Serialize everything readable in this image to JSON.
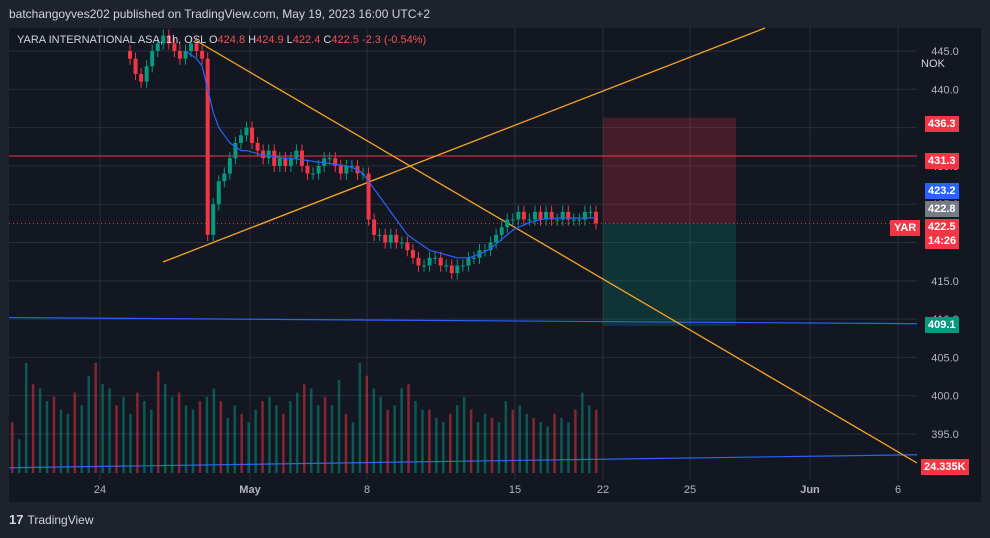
{
  "header": {
    "publisher": "batchangoyves202 published on TradingView.com, May 19, 2023 16:00 UTC+2"
  },
  "legend": {
    "symbol": "YARA INTERNATIONAL ASA, 1h, OSL",
    "open_label": "O",
    "open": "424.8",
    "high_label": "H",
    "high": "424.9",
    "low_label": "L",
    "low": "422.4",
    "close_label": "C",
    "close": "422.5",
    "change": "-2.3 (-0.54%)"
  },
  "currency": "NOK",
  "symbol_tag": "YAR",
  "footer": {
    "brand": "TradingView",
    "logo_text": "17"
  },
  "price_tags": [
    {
      "label": "436.3",
      "color": "#f23645"
    },
    {
      "label": "431.3",
      "color": "#f23645"
    },
    {
      "label": "423.2",
      "color": "#2962ff"
    },
    {
      "label": "422.8",
      "color": "#787b86"
    },
    {
      "label": "422.5",
      "color": "#f23645"
    },
    {
      "label": "14:26",
      "color": "#f23645"
    },
    {
      "label": "409.1",
      "color": "#089981"
    },
    {
      "label": "24.335K",
      "color": "#f23645"
    }
  ],
  "chart_data": {
    "type": "candlestick",
    "ylim": [
      389,
      448
    ],
    "y_ticks": [
      395.0,
      400.0,
      405.0,
      410.0,
      415.0,
      420.0,
      425.0,
      430.0,
      435.0,
      440.0,
      445.0
    ],
    "x_ticks": [
      "24",
      "May",
      "8",
      "15",
      "22",
      "25",
      "Jun",
      "6"
    ],
    "colors": {
      "up": "#089981",
      "down": "#f23645",
      "ma": "#2962ff",
      "trend": "#f5a623",
      "grid": "#2a2e39"
    },
    "series": [
      {
        "name": "price",
        "values": [
          444,
          442,
          441,
          443,
          445,
          446,
          447,
          446,
          445,
          444,
          445,
          446,
          445,
          444,
          421,
          425,
          428,
          429,
          431,
          433,
          434,
          435,
          433,
          432,
          431,
          432,
          430,
          431,
          430,
          431,
          432,
          430,
          429,
          429,
          430,
          431,
          431,
          430,
          429,
          430,
          430,
          429,
          429,
          423,
          421,
          421,
          420,
          421,
          420,
          420,
          419,
          418,
          417,
          417,
          418,
          418,
          417,
          417,
          416,
          417,
          417,
          418,
          418,
          419,
          419,
          420,
          421,
          422,
          423,
          423,
          424,
          423,
          423,
          424,
          423,
          424,
          423,
          423,
          424,
          423,
          423,
          423,
          424,
          424,
          422.5
        ]
      },
      {
        "name": "moving average",
        "values": [
          null,
          null,
          null,
          null,
          null,
          null,
          null,
          null,
          null,
          null,
          445,
          444.5,
          444,
          443,
          440,
          437,
          435,
          434,
          433,
          432.5,
          432,
          432,
          431.8,
          431.6,
          431.4,
          431.3,
          431.2,
          431.1,
          431,
          431,
          430.9,
          430.8,
          430.7,
          430.6,
          430.5,
          430.4,
          430.3,
          430.2,
          430.1,
          430,
          429.8,
          429.5,
          429,
          428,
          427,
          426,
          425,
          424,
          423,
          422,
          421,
          420.5,
          420,
          419.5,
          419,
          418.8,
          418.6,
          418.4,
          418.2,
          418,
          418,
          418,
          418.2,
          418.5,
          418.8,
          419.2,
          419.8,
          420.4,
          421,
          421.6,
          422,
          422.3,
          422.6,
          422.8,
          423,
          423.1,
          423.1,
          423.2,
          423.2,
          423.2,
          423.2,
          423.2,
          423.2,
          423.2,
          423.2
        ]
      }
    ],
    "volume": [
      120,
      80,
      260,
      210,
      200,
      170,
      180,
      150,
      140,
      190,
      160,
      230,
      260,
      210,
      200,
      160,
      180,
      140,
      190,
      170,
      150,
      240,
      210,
      180,
      190,
      160,
      150,
      170,
      180,
      200,
      170,
      130,
      160,
      140,
      120,
      150,
      170,
      180,
      160,
      140,
      170,
      190,
      210,
      200,
      160,
      180,
      160,
      220,
      140,
      120,
      260,
      230,
      200,
      180,
      150,
      160,
      200,
      210,
      170,
      150,
      150,
      130,
      120,
      140,
      160,
      180,
      150,
      120,
      140,
      130,
      120,
      170,
      150,
      160,
      140,
      130,
      120,
      110,
      140,
      130,
      120,
      150,
      190,
      160,
      150
    ],
    "levels": [
      {
        "name": "stop level",
        "value": 436.3
      },
      {
        "name": "resistance",
        "value": 431.3
      },
      {
        "name": "target level",
        "value": 409.1
      },
      {
        "name": "last price",
        "value": 422.5
      }
    ],
    "volume_tag": "24.335K"
  }
}
